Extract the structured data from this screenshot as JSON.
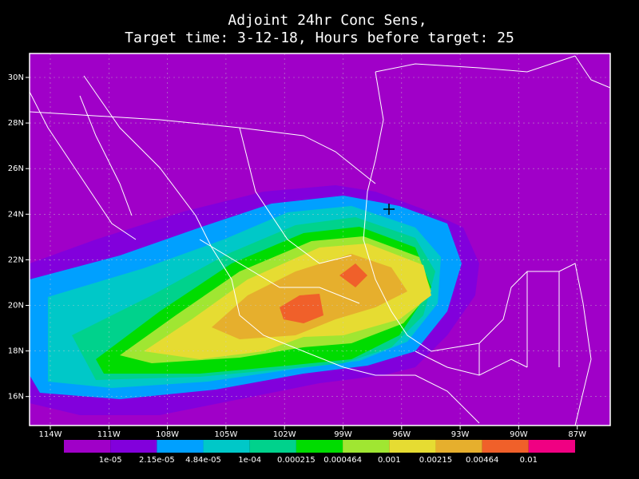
{
  "title": [
    "Adjoint 24hr Conc Sens,",
    "Target time: 3-12-18, Hours before target: 25"
  ],
  "map": {
    "background": "#a000c8",
    "lon_labels": [
      "114W",
      "111W",
      "108W",
      "105W",
      "102W",
      "99W",
      "96W",
      "93W",
      "90W",
      "87W"
    ],
    "lat_labels": [
      "30N",
      "28N",
      "26N",
      "24N",
      "22N",
      "20N",
      "18N",
      "16N"
    ]
  },
  "colorbar": {
    "colors": [
      "#a000c8",
      "#8200dc",
      "#00a0ff",
      "#00c8c8",
      "#00d28c",
      "#00dc00",
      "#a0e632",
      "#e6dc32",
      "#e6af2d",
      "#f0602a",
      "#f00082"
    ],
    "labels": [
      "1e-05",
      "2.15e-05",
      "4.84e-05",
      "1e-04",
      "0.000215",
      "0.000464",
      "0.001",
      "0.00215",
      "0.00464",
      "0.01"
    ]
  }
}
